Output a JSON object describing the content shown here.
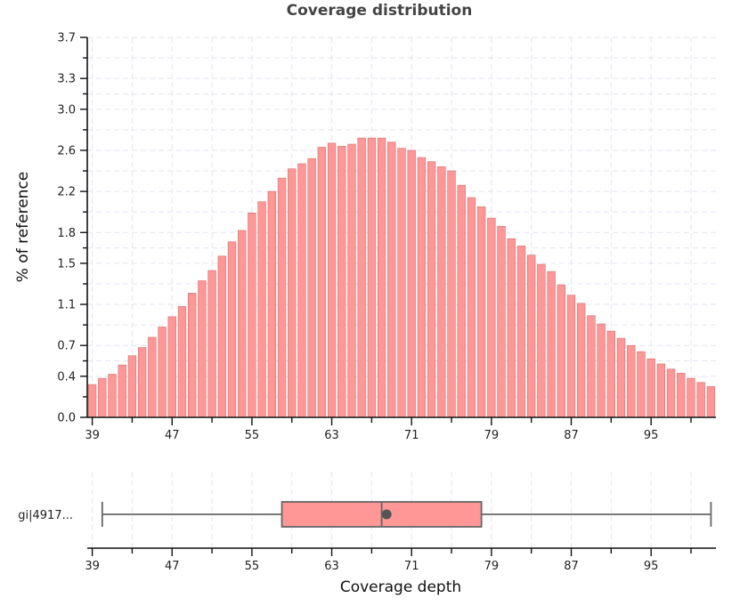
{
  "chart_data": [
    {
      "type": "bar",
      "title": "Coverage distribution",
      "ylabel": "% of reference",
      "xlabel": "",
      "x_ticks": [
        39,
        47,
        55,
        63,
        71,
        79,
        87,
        95
      ],
      "y_ticks": [
        "0.0",
        "0.4",
        "0.7",
        "1.1",
        "1.5",
        "1.8",
        "2.2",
        "2.6",
        "3.0",
        "3.3",
        "3.7"
      ],
      "ylim": [
        0,
        3.7
      ],
      "xlim": [
        38.5,
        101.5
      ],
      "grid": true,
      "bar_color": "#ff9797",
      "x": [
        39,
        40,
        41,
        42,
        43,
        44,
        45,
        46,
        47,
        48,
        49,
        50,
        51,
        52,
        53,
        54,
        55,
        56,
        57,
        58,
        59,
        60,
        61,
        62,
        63,
        64,
        65,
        66,
        67,
        68,
        69,
        70,
        71,
        72,
        73,
        74,
        75,
        76,
        77,
        78,
        79,
        80,
        81,
        82,
        83,
        84,
        85,
        86,
        87,
        88,
        89,
        90,
        91,
        92,
        93,
        94,
        95,
        96,
        97,
        98,
        99,
        100,
        101
      ],
      "values": [
        0.32,
        0.38,
        0.42,
        0.51,
        0.6,
        0.68,
        0.78,
        0.88,
        0.98,
        1.08,
        1.21,
        1.33,
        1.43,
        1.57,
        1.71,
        1.82,
        1.99,
        2.1,
        2.2,
        2.33,
        2.42,
        2.47,
        2.52,
        2.63,
        2.67,
        2.64,
        2.66,
        2.72,
        2.72,
        2.72,
        2.68,
        2.62,
        2.6,
        2.53,
        2.49,
        2.44,
        2.4,
        2.26,
        2.14,
        2.05,
        1.94,
        1.86,
        1.74,
        1.67,
        1.58,
        1.49,
        1.42,
        1.29,
        1.19,
        1.11,
        0.99,
        0.91,
        0.84,
        0.77,
        0.7,
        0.64,
        0.57,
        0.52,
        0.47,
        0.43,
        0.38,
        0.34,
        0.3
      ]
    },
    {
      "type": "box",
      "xlabel": "Coverage depth",
      "category": "gi|4917...",
      "x_ticks": [
        39,
        47,
        55,
        63,
        71,
        79,
        87,
        95
      ],
      "xlim": [
        38.5,
        101.5
      ],
      "whisker_low": 40,
      "q1": 58,
      "median": 68,
      "mean": 68.5,
      "q3": 78,
      "whisker_high": 101,
      "box_color": "#ff9797"
    }
  ]
}
